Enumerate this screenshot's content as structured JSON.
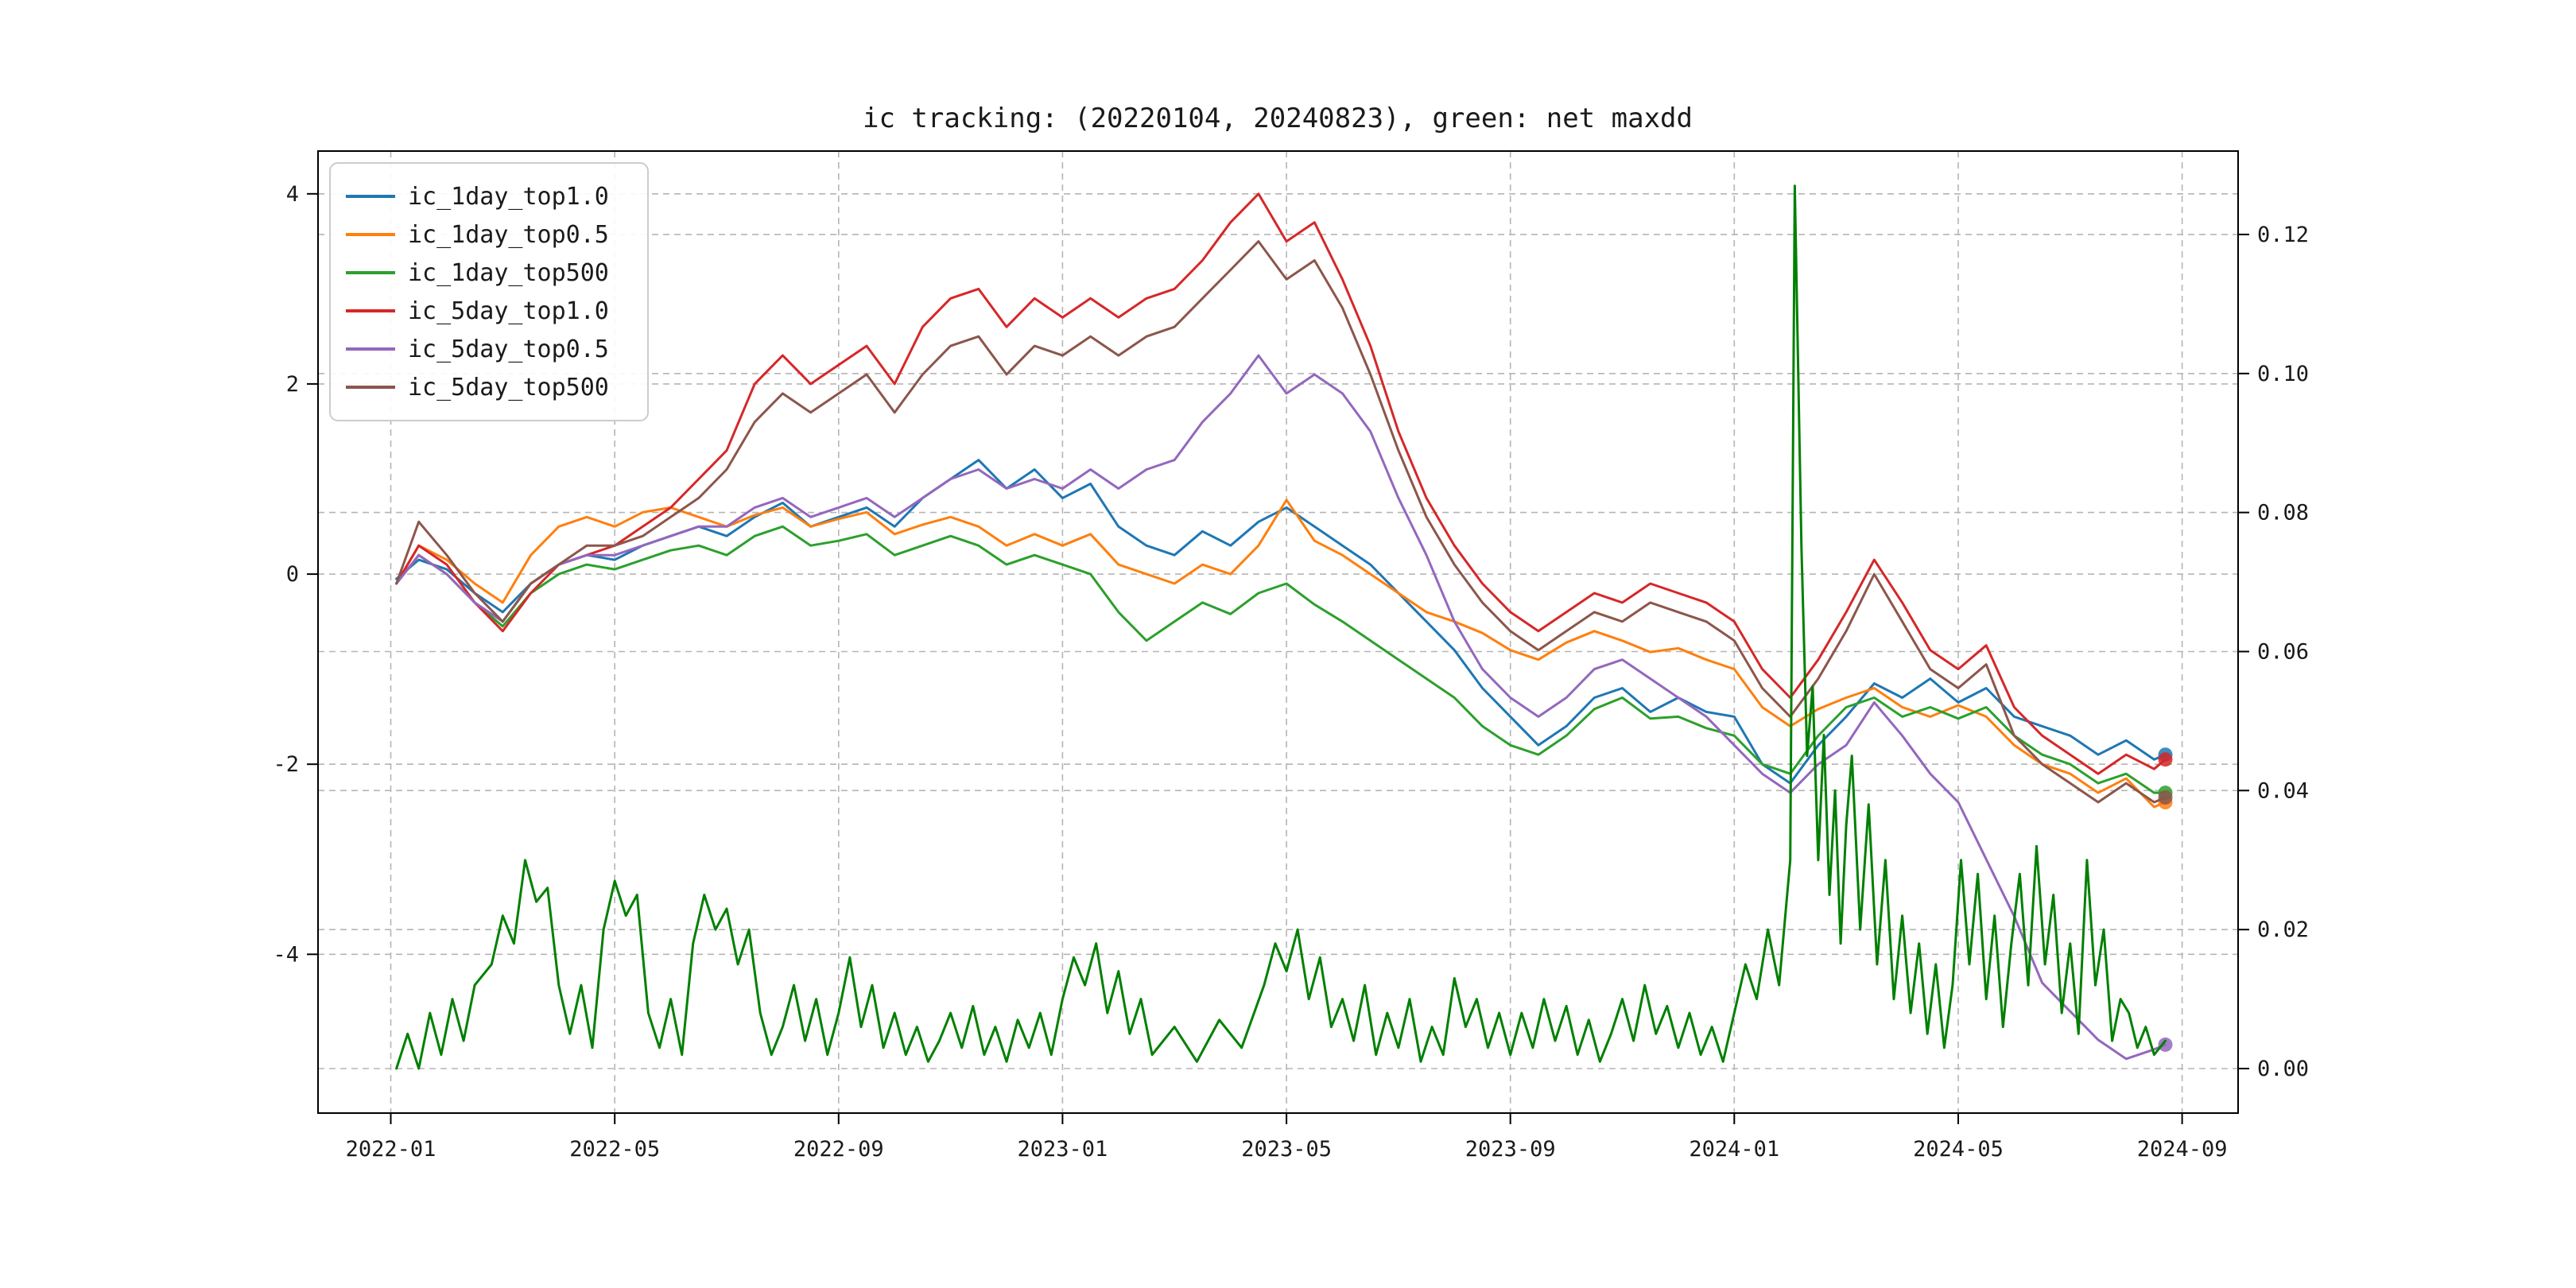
{
  "title": "ic tracking: (20220104, 20240823), green: net maxdd",
  "chart_data": {
    "type": "line",
    "title": "ic tracking: (20220104, 20240823), green: net maxdd",
    "date_range": [
      "20220104",
      "20240823"
    ],
    "note": "green bottom series is net maxdd plotted on right axis; x unit is months since 2022-01",
    "grid": {
      "style": "dashed",
      "color": "#b5b5b5"
    },
    "legend_position": "upper-left",
    "x_axis": {
      "range": [
        -1.3,
        33.0
      ],
      "tick_values": [
        0,
        4,
        8,
        12,
        16,
        20,
        24,
        28,
        32
      ],
      "tick_labels": [
        "2022-01",
        "2022-05",
        "2022-09",
        "2023-01",
        "2023-05",
        "2023-09",
        "2024-01",
        "2024-05",
        "2024-09"
      ]
    },
    "y_axis_left": {
      "range": [
        -5.67,
        4.45
      ],
      "tick_values": [
        -4,
        -2,
        0,
        2,
        4
      ],
      "tick_labels": [
        "-4",
        "-2",
        "0",
        "2",
        "4"
      ]
    },
    "y_axis_right": {
      "range": [
        -0.0064,
        0.132
      ],
      "tick_values": [
        0.0,
        0.02,
        0.04,
        0.06,
        0.08,
        0.1,
        0.12
      ],
      "tick_labels": [
        "0.00",
        "0.02",
        "0.04",
        "0.06",
        "0.08",
        "0.10",
        "0.12"
      ]
    },
    "x_shared": [
      0.1,
      0.5,
      1.0,
      1.5,
      2.0,
      2.5,
      3.0,
      3.5,
      4.0,
      4.5,
      5.0,
      5.5,
      6.0,
      6.5,
      7.0,
      7.5,
      8.0,
      8.5,
      9.0,
      9.5,
      10.0,
      10.5,
      11.0,
      11.5,
      12.0,
      12.5,
      13.0,
      13.5,
      14.0,
      14.5,
      15.0,
      15.5,
      16.0,
      16.5,
      17.0,
      17.5,
      18.0,
      18.5,
      19.0,
      19.5,
      20.0,
      20.5,
      21.0,
      21.5,
      22.0,
      22.5,
      23.0,
      23.5,
      24.0,
      24.5,
      25.0,
      25.5,
      26.0,
      26.5,
      27.0,
      27.5,
      28.0,
      28.5,
      29.0,
      29.5,
      30.0,
      30.5,
      31.0,
      31.5,
      31.7
    ],
    "series": [
      {
        "name": "ic_1day_top1.0",
        "color": "#1f77b4",
        "axis": "left",
        "in_legend": true,
        "end_marker": true,
        "y": [
          -0.05,
          0.15,
          0.05,
          -0.2,
          -0.4,
          -0.1,
          0.1,
          0.2,
          0.15,
          0.3,
          0.4,
          0.5,
          0.4,
          0.6,
          0.75,
          0.5,
          0.6,
          0.7,
          0.5,
          0.8,
          1.0,
          1.2,
          0.9,
          1.1,
          0.8,
          0.95,
          0.5,
          0.3,
          0.2,
          0.45,
          0.3,
          0.55,
          0.7,
          0.5,
          0.3,
          0.1,
          -0.2,
          -0.5,
          -0.8,
          -1.2,
          -1.5,
          -1.8,
          -1.6,
          -1.3,
          -1.2,
          -1.45,
          -1.3,
          -1.45,
          -1.5,
          -2.0,
          -2.2,
          -1.8,
          -1.5,
          -1.15,
          -1.3,
          -1.1,
          -1.35,
          -1.2,
          -1.5,
          -1.6,
          -1.7,
          -1.9,
          -1.75,
          -1.95,
          -1.9
        ]
      },
      {
        "name": "ic_1day_top0.5",
        "color": "#ff7f0e",
        "axis": "left",
        "in_legend": true,
        "end_marker": true,
        "y": [
          -0.1,
          0.3,
          0.15,
          -0.1,
          -0.3,
          0.2,
          0.5,
          0.6,
          0.5,
          0.65,
          0.7,
          0.6,
          0.5,
          0.62,
          0.7,
          0.5,
          0.58,
          0.65,
          0.42,
          0.52,
          0.6,
          0.5,
          0.3,
          0.42,
          0.3,
          0.42,
          0.1,
          0.0,
          -0.1,
          0.1,
          0.0,
          0.3,
          0.78,
          0.35,
          0.2,
          0.0,
          -0.2,
          -0.4,
          -0.5,
          -0.62,
          -0.8,
          -0.9,
          -0.72,
          -0.6,
          -0.7,
          -0.82,
          -0.78,
          -0.9,
          -1.0,
          -1.4,
          -1.6,
          -1.42,
          -1.3,
          -1.2,
          -1.4,
          -1.5,
          -1.38,
          -1.5,
          -1.8,
          -2.0,
          -2.1,
          -2.3,
          -2.15,
          -2.45,
          -2.4
        ]
      },
      {
        "name": "ic_1day_top500",
        "color": "#2ca02c",
        "axis": "left",
        "in_legend": true,
        "end_marker": true,
        "y": [
          -0.1,
          0.2,
          0.0,
          -0.3,
          -0.55,
          -0.2,
          0.0,
          0.1,
          0.05,
          0.15,
          0.25,
          0.3,
          0.2,
          0.4,
          0.5,
          0.3,
          0.35,
          0.42,
          0.2,
          0.3,
          0.4,
          0.3,
          0.1,
          0.2,
          0.1,
          0.0,
          -0.4,
          -0.7,
          -0.5,
          -0.3,
          -0.42,
          -0.2,
          -0.1,
          -0.32,
          -0.5,
          -0.7,
          -0.9,
          -1.1,
          -1.3,
          -1.6,
          -1.8,
          -1.9,
          -1.7,
          -1.42,
          -1.3,
          -1.52,
          -1.5,
          -1.62,
          -1.7,
          -2.0,
          -2.1,
          -1.7,
          -1.4,
          -1.3,
          -1.5,
          -1.4,
          -1.52,
          -1.4,
          -1.7,
          -1.9,
          -2.0,
          -2.2,
          -2.1,
          -2.3,
          -2.3
        ]
      },
      {
        "name": "ic_5day_top1.0",
        "color": "#d62728",
        "axis": "left",
        "in_legend": true,
        "end_marker": true,
        "y": [
          -0.1,
          0.3,
          0.1,
          -0.3,
          -0.6,
          -0.2,
          0.1,
          0.2,
          0.3,
          0.5,
          0.7,
          1.0,
          1.3,
          2.0,
          2.3,
          2.0,
          2.2,
          2.4,
          2.0,
          2.6,
          2.9,
          3.0,
          2.6,
          2.9,
          2.7,
          2.9,
          2.7,
          2.9,
          3.0,
          3.3,
          3.7,
          4.0,
          3.5,
          3.7,
          3.1,
          2.4,
          1.5,
          0.8,
          0.3,
          -0.1,
          -0.4,
          -0.6,
          -0.4,
          -0.2,
          -0.3,
          -0.1,
          -0.2,
          -0.3,
          -0.5,
          -1.0,
          -1.3,
          -0.9,
          -0.4,
          0.15,
          -0.3,
          -0.8,
          -1.0,
          -0.75,
          -1.4,
          -1.7,
          -1.9,
          -2.1,
          -1.9,
          -2.05,
          -1.95
        ]
      },
      {
        "name": "ic_5day_top0.5",
        "color": "#9467bd",
        "axis": "left",
        "in_legend": true,
        "end_marker": true,
        "y": [
          -0.1,
          0.2,
          0.0,
          -0.3,
          -0.5,
          -0.1,
          0.1,
          0.2,
          0.2,
          0.3,
          0.4,
          0.5,
          0.5,
          0.7,
          0.8,
          0.6,
          0.7,
          0.8,
          0.6,
          0.8,
          1.0,
          1.1,
          0.9,
          1.0,
          0.9,
          1.1,
          0.9,
          1.1,
          1.2,
          1.6,
          1.9,
          2.3,
          1.9,
          2.1,
          1.9,
          1.5,
          0.8,
          0.2,
          -0.5,
          -1.0,
          -1.3,
          -1.5,
          -1.3,
          -1.0,
          -0.9,
          -1.1,
          -1.3,
          -1.5,
          -1.8,
          -2.1,
          -2.3,
          -2.0,
          -1.8,
          -1.35,
          -1.7,
          -2.1,
          -2.4,
          -3.0,
          -3.6,
          -4.3,
          -4.6,
          -4.9,
          -5.1,
          -5.0,
          -4.95
        ]
      },
      {
        "name": "ic_5day_top500",
        "color": "#8c564b",
        "axis": "left",
        "in_legend": true,
        "end_marker": true,
        "y": [
          -0.1,
          0.55,
          0.2,
          -0.2,
          -0.5,
          -0.1,
          0.1,
          0.3,
          0.3,
          0.4,
          0.6,
          0.8,
          1.1,
          1.6,
          1.9,
          1.7,
          1.9,
          2.1,
          1.7,
          2.1,
          2.4,
          2.5,
          2.1,
          2.4,
          2.3,
          2.5,
          2.3,
          2.5,
          2.6,
          2.9,
          3.2,
          3.5,
          3.1,
          3.3,
          2.8,
          2.1,
          1.3,
          0.6,
          0.1,
          -0.3,
          -0.6,
          -0.8,
          -0.6,
          -0.4,
          -0.5,
          -0.3,
          -0.4,
          -0.5,
          -0.7,
          -1.2,
          -1.5,
          -1.1,
          -0.6,
          0.0,
          -0.5,
          -1.0,
          -1.2,
          -0.95,
          -1.7,
          -2.0,
          -2.2,
          -2.4,
          -2.2,
          -2.4,
          -2.35
        ]
      },
      {
        "name": "net_maxdd",
        "color": "#008000",
        "axis": "right",
        "in_legend": false,
        "end_marker": false,
        "x": [
          0.1,
          0.3,
          0.5,
          0.7,
          0.9,
          1.1,
          1.3,
          1.5,
          1.8,
          2.0,
          2.2,
          2.4,
          2.6,
          2.8,
          3.0,
          3.2,
          3.4,
          3.6,
          3.8,
          4.0,
          4.2,
          4.4,
          4.6,
          4.8,
          5.0,
          5.2,
          5.4,
          5.6,
          5.8,
          6.0,
          6.2,
          6.4,
          6.6,
          6.8,
          7.0,
          7.2,
          7.4,
          7.6,
          7.8,
          8.0,
          8.2,
          8.4,
          8.6,
          8.8,
          9.0,
          9.2,
          9.4,
          9.6,
          9.8,
          10.0,
          10.2,
          10.4,
          10.6,
          10.8,
          11.0,
          11.2,
          11.4,
          11.6,
          11.8,
          12.0,
          12.2,
          12.4,
          12.6,
          12.8,
          13.0,
          13.2,
          13.4,
          13.6,
          14.0,
          14.4,
          14.8,
          15.2,
          15.6,
          15.8,
          16.0,
          16.2,
          16.4,
          16.6,
          16.8,
          17.0,
          17.2,
          17.4,
          17.6,
          17.8,
          18.0,
          18.2,
          18.4,
          18.6,
          18.8,
          19.0,
          19.2,
          19.4,
          19.6,
          19.8,
          20.0,
          20.2,
          20.4,
          20.6,
          20.8,
          21.0,
          21.2,
          21.4,
          21.6,
          21.8,
          22.0,
          22.2,
          22.4,
          22.6,
          22.8,
          23.0,
          23.2,
          23.4,
          23.6,
          23.8,
          24.0,
          24.2,
          24.4,
          24.6,
          24.8,
          25.0,
          25.08,
          25.2,
          25.3,
          25.4,
          25.5,
          25.6,
          25.7,
          25.8,
          25.9,
          26.0,
          26.1,
          26.25,
          26.4,
          26.55,
          26.7,
          26.85,
          27.0,
          27.15,
          27.3,
          27.45,
          27.6,
          27.75,
          27.9,
          28.05,
          28.2,
          28.35,
          28.5,
          28.65,
          28.8,
          28.95,
          29.1,
          29.25,
          29.4,
          29.55,
          29.7,
          29.85,
          30.0,
          30.15,
          30.3,
          30.45,
          30.6,
          30.75,
          30.9,
          31.05,
          31.2,
          31.35,
          31.5,
          31.7
        ],
        "y": [
          0.0,
          0.005,
          0.0,
          0.008,
          0.002,
          0.01,
          0.004,
          0.012,
          0.015,
          0.022,
          0.018,
          0.03,
          0.024,
          0.026,
          0.012,
          0.005,
          0.012,
          0.003,
          0.02,
          0.027,
          0.022,
          0.025,
          0.008,
          0.003,
          0.01,
          0.002,
          0.018,
          0.025,
          0.02,
          0.023,
          0.015,
          0.02,
          0.008,
          0.002,
          0.006,
          0.012,
          0.004,
          0.01,
          0.002,
          0.008,
          0.016,
          0.006,
          0.012,
          0.003,
          0.008,
          0.002,
          0.006,
          0.001,
          0.004,
          0.008,
          0.003,
          0.009,
          0.002,
          0.006,
          0.001,
          0.007,
          0.003,
          0.008,
          0.002,
          0.01,
          0.016,
          0.012,
          0.018,
          0.008,
          0.014,
          0.005,
          0.01,
          0.002,
          0.006,
          0.001,
          0.007,
          0.003,
          0.012,
          0.018,
          0.014,
          0.02,
          0.01,
          0.016,
          0.006,
          0.01,
          0.004,
          0.012,
          0.002,
          0.008,
          0.003,
          0.01,
          0.001,
          0.006,
          0.002,
          0.013,
          0.006,
          0.01,
          0.003,
          0.008,
          0.002,
          0.008,
          0.003,
          0.01,
          0.004,
          0.009,
          0.002,
          0.007,
          0.001,
          0.005,
          0.01,
          0.004,
          0.012,
          0.005,
          0.009,
          0.003,
          0.008,
          0.002,
          0.006,
          0.001,
          0.008,
          0.015,
          0.01,
          0.02,
          0.012,
          0.03,
          0.127,
          0.075,
          0.045,
          0.055,
          0.03,
          0.048,
          0.025,
          0.04,
          0.018,
          0.035,
          0.045,
          0.02,
          0.038,
          0.015,
          0.03,
          0.01,
          0.022,
          0.008,
          0.018,
          0.005,
          0.015,
          0.003,
          0.012,
          0.03,
          0.015,
          0.028,
          0.01,
          0.022,
          0.006,
          0.018,
          0.028,
          0.012,
          0.032,
          0.015,
          0.025,
          0.008,
          0.018,
          0.005,
          0.03,
          0.012,
          0.02,
          0.004,
          0.01,
          0.008,
          0.003,
          0.006,
          0.002,
          0.004
        ]
      }
    ]
  }
}
